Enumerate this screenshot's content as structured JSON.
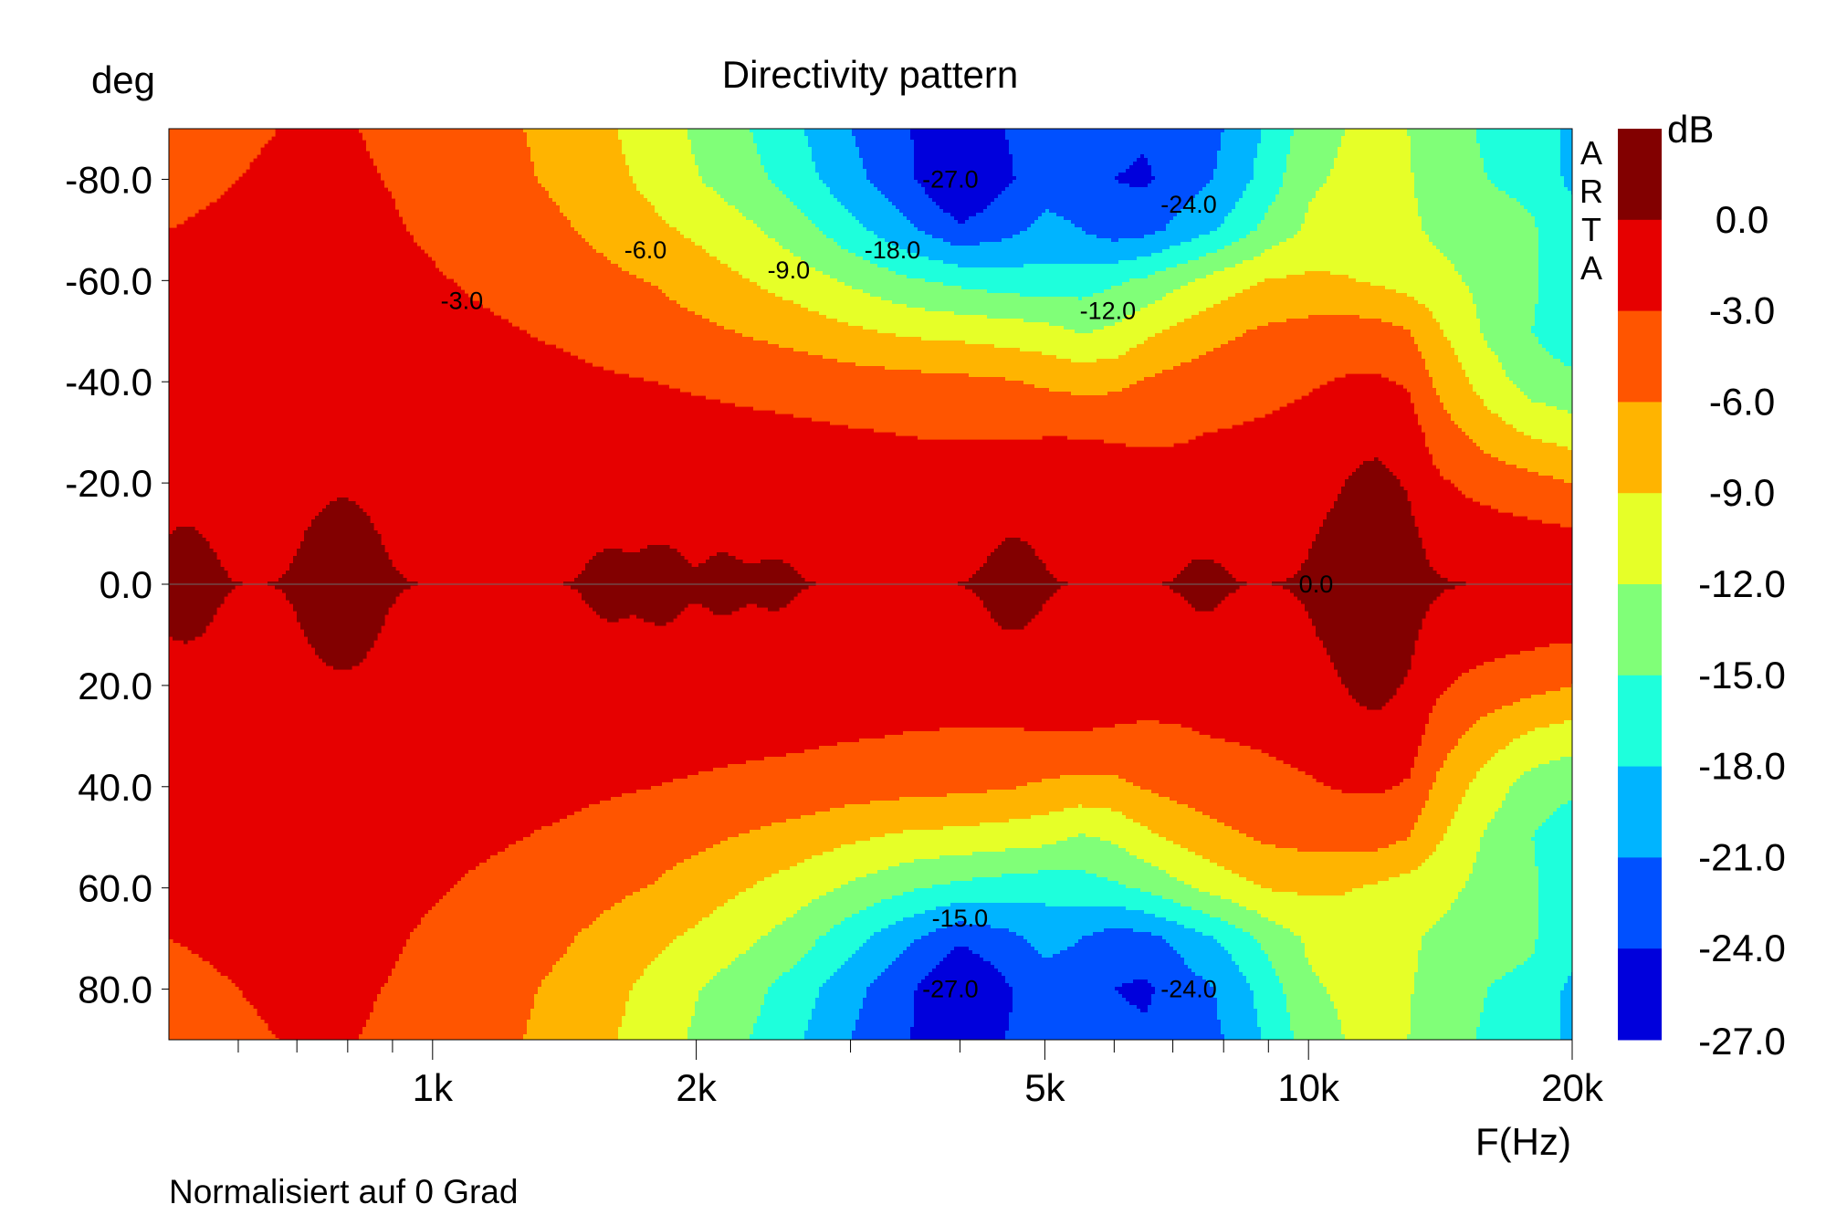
{
  "chart_data": {
    "type": "heatmap",
    "title": "Directivity pattern",
    "ylabel": "deg",
    "xlabel": "F(Hz)",
    "colorbar_label": "dB",
    "brand": "ARTA",
    "footnote": "Normalisiert auf 0 Grad",
    "x_scale": "log",
    "xlim": [
      500,
      20000
    ],
    "ylim": [
      -90,
      90
    ],
    "y_axis_inverted": true,
    "x_ticks": [
      {
        "value": 1000,
        "label": "1k"
      },
      {
        "value": 2000,
        "label": "2k"
      },
      {
        "value": 5000,
        "label": "5k"
      },
      {
        "value": 10000,
        "label": "10k"
      },
      {
        "value": 20000,
        "label": "20k"
      }
    ],
    "x_minor_ticks": [
      600,
      700,
      800,
      900,
      3000,
      4000,
      6000,
      7000,
      8000,
      9000
    ],
    "y_ticks": [
      {
        "value": -80,
        "label": "-80.0"
      },
      {
        "value": -60,
        "label": "-60.0"
      },
      {
        "value": -40,
        "label": "-40.0"
      },
      {
        "value": -20,
        "label": "-20.0"
      },
      {
        "value": 0,
        "label": "0.0"
      },
      {
        "value": 20,
        "label": "20.0"
      },
      {
        "value": 40,
        "label": "40.0"
      },
      {
        "value": 60,
        "label": "60.0"
      },
      {
        "value": 80,
        "label": "80.0"
      }
    ],
    "color_levels": [
      {
        "label": "0.0",
        "color": "#820000"
      },
      {
        "label": "-3.0",
        "color": "#e60000"
      },
      {
        "label": "-6.0",
        "color": "#ff5500"
      },
      {
        "label": "-9.0",
        "color": "#ffb400"
      },
      {
        "label": "-12.0",
        "color": "#e6ff28"
      },
      {
        "label": "-15.0",
        "color": "#80ff78"
      },
      {
        "label": "-18.0",
        "color": "#1effdc"
      },
      {
        "label": "-21.0",
        "color": "#00b4ff"
      },
      {
        "label": "-24.0",
        "color": "#0050ff"
      },
      {
        "label": "-27.0",
        "color": "#0000dc"
      }
    ],
    "contour_labels": [
      {
        "text": "-27.0",
        "f": 3900,
        "deg": -80
      },
      {
        "text": "-24.0",
        "f": 7300,
        "deg": -75
      },
      {
        "text": "-6.0",
        "f": 1750,
        "deg": -66
      },
      {
        "text": "-9.0",
        "f": 2550,
        "deg": -62
      },
      {
        "text": "-18.0",
        "f": 3350,
        "deg": -66
      },
      {
        "text": "-3.0",
        "f": 1080,
        "deg": -56
      },
      {
        "text": "-12.0",
        "f": 5900,
        "deg": -54
      },
      {
        "text": "0.0",
        "f": 10200,
        "deg": 0
      },
      {
        "text": "-15.0",
        "f": 4000,
        "deg": 66
      },
      {
        "text": "-27.0",
        "f": 3900,
        "deg": 80
      },
      {
        "text": "-24.0",
        "f": 7300,
        "deg": 80
      }
    ],
    "data": {
      "frequencies": [
        500,
        600,
        700,
        800,
        900,
        1000,
        1200,
        1400,
        1600,
        1800,
        2000,
        2300,
        2600,
        3000,
        3500,
        4000,
        4500,
        5000,
        5500,
        6000,
        6500,
        7000,
        8000,
        9000,
        10000,
        11000,
        12000,
        13000,
        14000,
        15000,
        16000,
        17000,
        18000,
        19000,
        20000
      ],
      "angles_deg": [
        0,
        10,
        20,
        30,
        40,
        50,
        60,
        70,
        80,
        90
      ],
      "db": [
        [
          0.0,
          0.0,
          0.0,
          0.0,
          0.0,
          0.0,
          0.0,
          0.0,
          0.0,
          0.0,
          0.0,
          0.0,
          0.0,
          0.0,
          0.0,
          0.0,
          0.0,
          0.0,
          0.0,
          0.0,
          0.0,
          0.0,
          0.0,
          0.0,
          0.0,
          0.0,
          0.0,
          0.0,
          0.0,
          0.0,
          0.0,
          0.0,
          0.0,
          0.0,
          0.0
        ],
        [
          -0.5,
          -0.4,
          -0.3,
          -0.3,
          -0.4,
          -0.4,
          -0.5,
          -0.5,
          -0.5,
          -0.6,
          -0.6,
          -0.7,
          -0.7,
          -0.8,
          -0.9,
          -0.9,
          -0.8,
          -0.8,
          -0.8,
          -0.9,
          -0.9,
          -1.0,
          -1.0,
          -0.9,
          -0.5,
          -0.3,
          -0.3,
          -0.4,
          -1.2,
          -1.6,
          -1.8,
          -2.0,
          -2.2,
          -2.4,
          -2.5
        ],
        [
          -1.0,
          -0.9,
          -0.8,
          -0.8,
          -0.9,
          -1.0,
          -1.0,
          -1.1,
          -1.1,
          -1.2,
          -1.3,
          -1.4,
          -1.5,
          -1.7,
          -1.9,
          -2.0,
          -2.0,
          -2.0,
          -2.1,
          -2.2,
          -2.3,
          -2.4,
          -2.4,
          -2.3,
          -1.5,
          -1.0,
          -0.8,
          -1.0,
          -2.6,
          -3.4,
          -4.0,
          -4.5,
          -5.0,
          -5.5,
          -6.0
        ],
        [
          -1.5,
          -1.4,
          -1.3,
          -1.3,
          -1.4,
          -1.5,
          -1.6,
          -1.7,
          -1.8,
          -2.0,
          -2.1,
          -2.3,
          -2.5,
          -2.8,
          -3.1,
          -3.2,
          -3.2,
          -3.1,
          -3.1,
          -3.2,
          -3.3,
          -3.2,
          -2.9,
          -2.6,
          -2.2,
          -1.6,
          -1.4,
          -1.8,
          -4.5,
          -6.0,
          -7.5,
          -8.5,
          -9.5,
          -10.0,
          -10.5
        ],
        [
          -2.0,
          -1.9,
          -1.8,
          -1.8,
          -1.9,
          -2.0,
          -2.2,
          -2.4,
          -2.7,
          -3.0,
          -3.3,
          -3.7,
          -4.0,
          -4.6,
          -5.0,
          -5.3,
          -5.7,
          -6.5,
          -7.0,
          -6.8,
          -5.8,
          -5.0,
          -4.2,
          -3.7,
          -3.3,
          -3.0,
          -3.0,
          -3.5,
          -6.5,
          -8.5,
          -10.5,
          -12.0,
          -13.5,
          -14.0,
          -14.5
        ],
        [
          -2.3,
          -2.2,
          -2.1,
          -2.1,
          -2.2,
          -2.4,
          -2.8,
          -3.3,
          -4.0,
          -4.7,
          -5.3,
          -6.3,
          -7.2,
          -8.5,
          -9.6,
          -10.0,
          -10.5,
          -11.0,
          -12.3,
          -11.5,
          -9.8,
          -8.5,
          -6.6,
          -5.5,
          -5.0,
          -4.8,
          -5.0,
          -6.0,
          -8.5,
          -10.5,
          -12.5,
          -13.5,
          -15.0,
          -16.0,
          -16.5
        ],
        [
          -2.6,
          -2.5,
          -2.3,
          -2.3,
          -2.5,
          -2.8,
          -3.5,
          -4.4,
          -5.4,
          -6.2,
          -7.4,
          -9.0,
          -10.5,
          -12.5,
          -14.6,
          -15.8,
          -16.5,
          -17.0,
          -16.5,
          -15.5,
          -14.5,
          -13.0,
          -10.5,
          -8.8,
          -8.5,
          -8.8,
          -9.5,
          -10.3,
          -11.0,
          -12.0,
          -13.0,
          -13.5,
          -14.5,
          -16.0,
          -16.5
        ],
        [
          -3.0,
          -2.7,
          -2.5,
          -2.5,
          -2.8,
          -3.3,
          -4.3,
          -5.6,
          -7.0,
          -8.4,
          -9.6,
          -11.5,
          -13.5,
          -17.0,
          -20.5,
          -23.5,
          -22.0,
          -20.0,
          -21.0,
          -22.5,
          -22.0,
          -20.5,
          -17.5,
          -14.0,
          -11.5,
          -10.5,
          -10.8,
          -11.5,
          -12.5,
          -13.0,
          -14.0,
          -14.0,
          -14.5,
          -16.5,
          -17.0
        ],
        [
          -3.4,
          -3.0,
          -2.7,
          -2.7,
          -3.1,
          -3.8,
          -5.1,
          -6.6,
          -8.2,
          -10.0,
          -11.8,
          -14.0,
          -16.5,
          -20.0,
          -23.5,
          -27.5,
          -24.5,
          -22.5,
          -22.5,
          -24.0,
          -24.5,
          -23.0,
          -20.5,
          -16.5,
          -12.5,
          -11.5,
          -11.2,
          -11.8,
          -13.0,
          -14.0,
          -15.0,
          -15.5,
          -16.0,
          -17.5,
          -18.5
        ],
        [
          -3.6,
          -3.2,
          -2.9,
          -2.9,
          -3.3,
          -4.0,
          -5.4,
          -7.0,
          -8.8,
          -10.6,
          -12.5,
          -15.0,
          -17.5,
          -21.0,
          -24.0,
          -25.5,
          -24.0,
          -22.5,
          -22.0,
          -23.0,
          -23.5,
          -23.0,
          -21.0,
          -17.5,
          -13.5,
          -12.0,
          -11.5,
          -12.0,
          -13.5,
          -14.5,
          -15.5,
          -16.0,
          -16.5,
          -17.5,
          -19.0
        ]
      ]
    }
  }
}
